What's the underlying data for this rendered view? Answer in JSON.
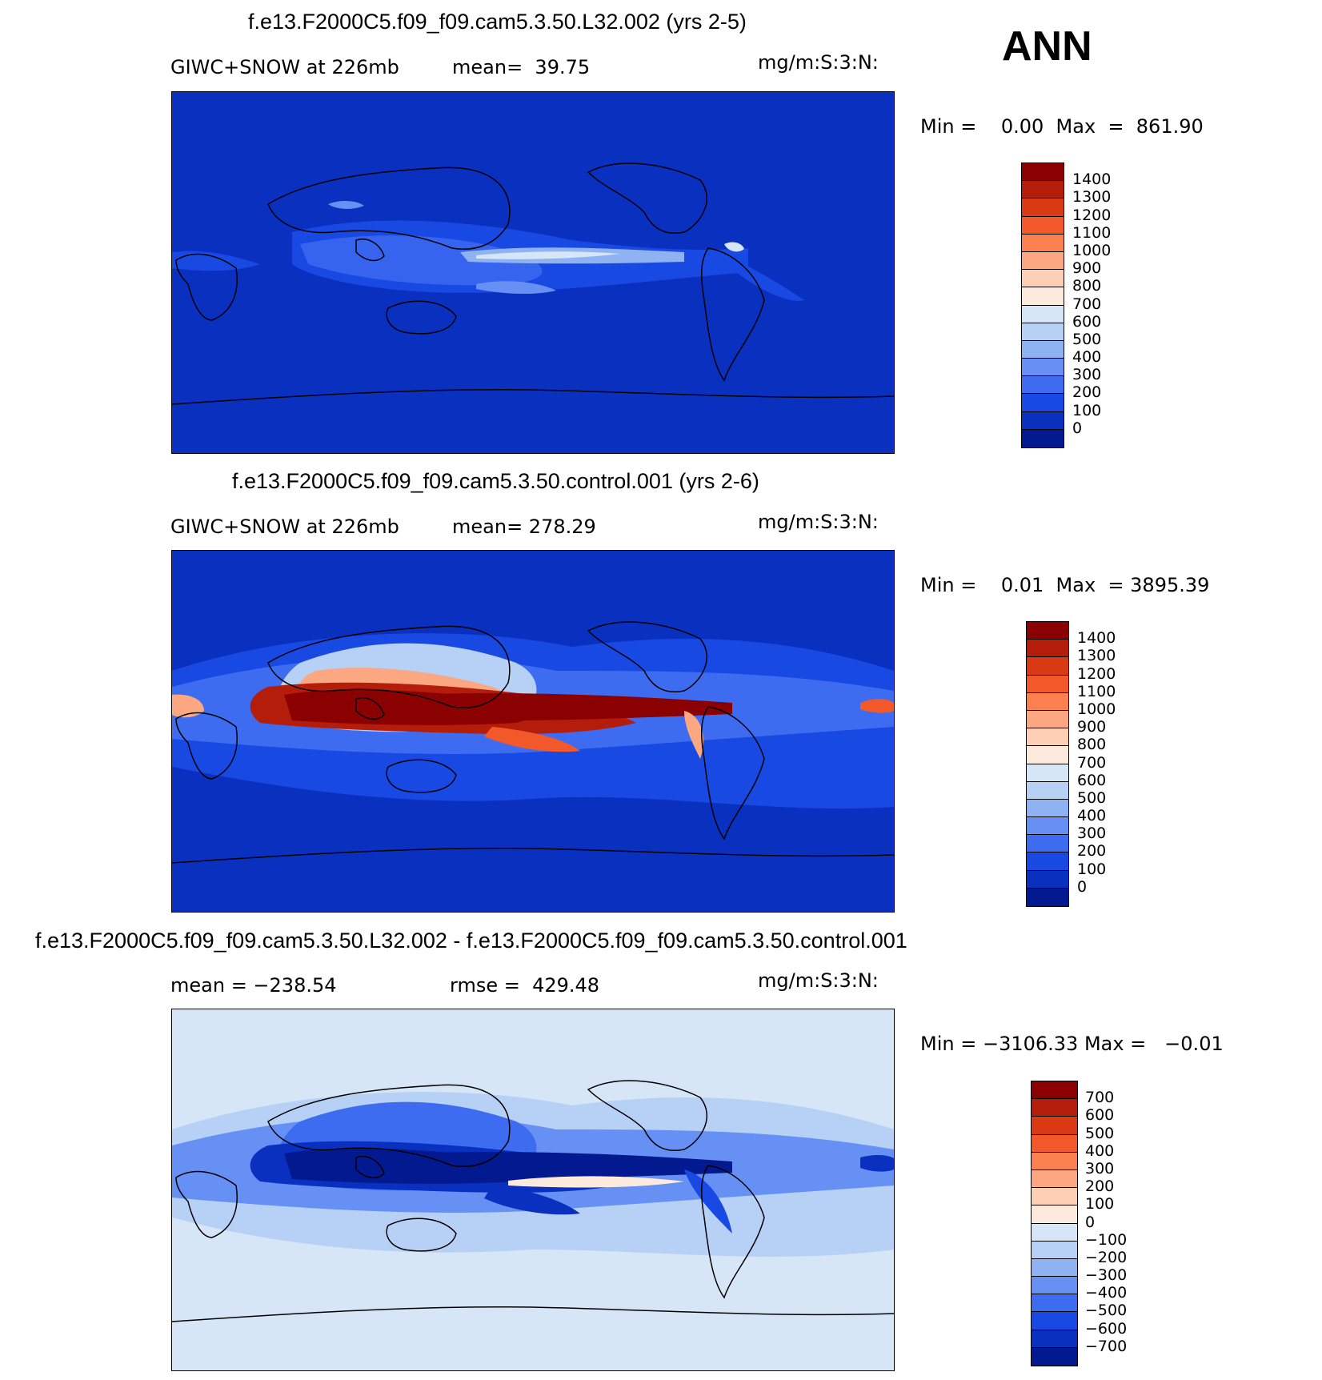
{
  "season": "ANN",
  "panels": [
    {
      "title": "f.e13.F2000C5.f09_f09.cam5.3.50.L32.002 (yrs 2-5)",
      "left_text": "GIWC+SNOW at 226mb",
      "mid_text": "mean=  39.75",
      "units": "mg/m:S:3:N:",
      "minmax": "Min =    0.00  Max  =  861.90",
      "colorbar": {
        "colors": [
          "#8b0000",
          "#b51d0b",
          "#d93a14",
          "#f2582a",
          "#fb8050",
          "#fba882",
          "#fdd0b5",
          "#fcebdc",
          "#d6e6f7",
          "#b7d0f5",
          "#8fb2f2",
          "#6690f3",
          "#3e6cf0",
          "#1849e3",
          "#0a30c0",
          "#03198f"
        ],
        "labels": [
          "1400",
          "1300",
          "1200",
          "1100",
          "1000",
          "900",
          "800",
          "700",
          "600",
          "500",
          "400",
          "300",
          "200",
          "100",
          "0"
        ]
      }
    },
    {
      "title": "f.e13.F2000C5.f09_f09.cam5.3.50.control.001 (yrs 2-6)",
      "left_text": "GIWC+SNOW at 226mb",
      "mid_text": "mean= 278.29",
      "units": "mg/m:S:3:N:",
      "minmax": "Min =    0.01  Max  = 3895.39",
      "colorbar": {
        "colors": [
          "#8b0000",
          "#b51d0b",
          "#d93a14",
          "#f2582a",
          "#fb8050",
          "#fba882",
          "#fdd0b5",
          "#fcebdc",
          "#d6e6f7",
          "#b7d0f5",
          "#8fb2f2",
          "#6690f3",
          "#3e6cf0",
          "#1849e3",
          "#0a30c0",
          "#03198f"
        ],
        "labels": [
          "1400",
          "1300",
          "1200",
          "1100",
          "1000",
          "900",
          "800",
          "700",
          "600",
          "500",
          "400",
          "300",
          "200",
          "100",
          "0"
        ]
      }
    },
    {
      "title": "f.e13.F2000C5.f09_f09.cam5.3.50.L32.002 - f.e13.F2000C5.f09_f09.cam5.3.50.control.001",
      "left_text": "mean = −238.54",
      "mid_text": "rmse =  429.48",
      "units": "mg/m:S:3:N:",
      "minmax": "Min = −3106.33 Max =   −0.01",
      "colorbar": {
        "colors": [
          "#8b0000",
          "#b51d0b",
          "#d93a14",
          "#f2582a",
          "#fb8050",
          "#fba882",
          "#fdd0b5",
          "#fcebdc",
          "#d6e6f7",
          "#b7d0f5",
          "#8fb2f2",
          "#6690f3",
          "#3e6cf0",
          "#1849e3",
          "#0a30c0",
          "#03198f"
        ],
        "labels": [
          "700",
          "600",
          "500",
          "400",
          "300",
          "200",
          "100",
          "0",
          "−100",
          "−200",
          "−300",
          "−400",
          "−500",
          "−600",
          "−700"
        ]
      }
    }
  ]
}
